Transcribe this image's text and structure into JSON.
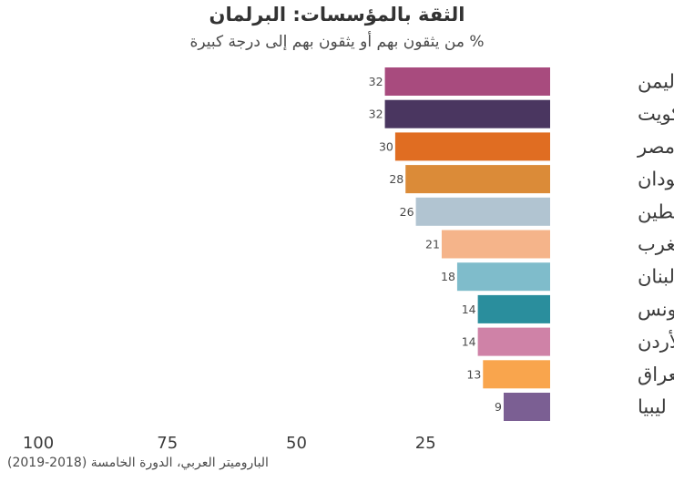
{
  "chart_data": {
    "type": "bar",
    "orientation": "horizontal",
    "title": "الثقة بالمؤسسات: البرلمان",
    "subtitle": "% من يثقون بهم أو يثقون بهم  إلى درجة كبيرة",
    "categories": [
      "اليمن",
      "الكويت",
      "مصر",
      "السودان",
      "فلسطين",
      "المغرب",
      "لبنان",
      "تونس",
      "الأردن",
      "العراق",
      "ليبيا"
    ],
    "values": [
      32,
      32,
      30,
      28,
      26,
      21,
      18,
      14,
      14,
      13,
      9
    ],
    "colors": [
      "#a84b7e",
      "#4a3660",
      "#e06d22",
      "#db8b38",
      "#b1c4d1",
      "#f5b48a",
      "#7fbccb",
      "#2a8e9d",
      "#cf82a7",
      "#f9a54d",
      "#7b5f93"
    ],
    "x_axis_direction": "reversed",
    "xlim": [
      0,
      100
    ],
    "xticks": [
      100,
      75,
      50,
      25
    ],
    "grid": false,
    "legend": "none",
    "source": "الباروميتر العربي، الدورة الخامسة (2018-2019)"
  }
}
